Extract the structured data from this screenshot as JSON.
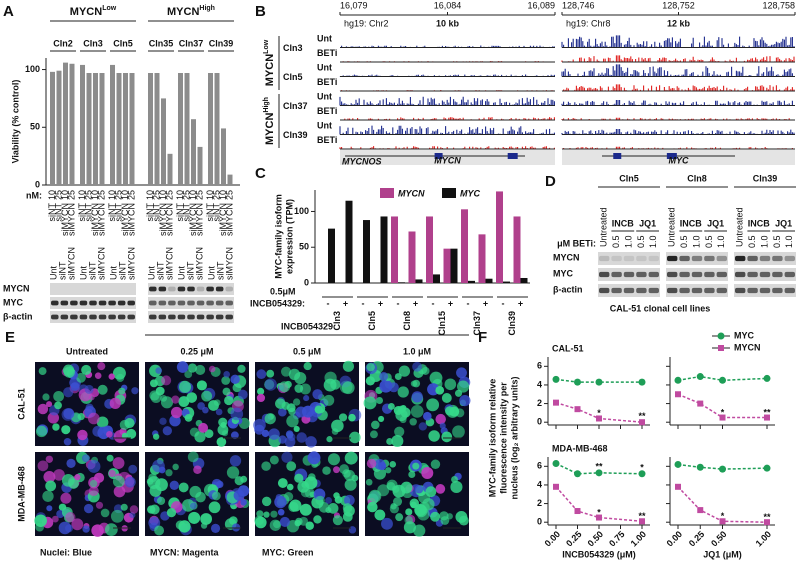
{
  "panel_a": {
    "letter": "A",
    "groups": [
      {
        "name": "MYCN",
        "sup": "Low",
        "clones": [
          {
            "name": "Cln2",
            "values": [
              98,
              99,
              106,
              105
            ]
          },
          {
            "name": "Cln3",
            "values": [
              104,
              97,
              97,
              97
            ]
          },
          {
            "name": "Cln5",
            "values": [
              104,
              97,
              97,
              97
            ]
          }
        ]
      },
      {
        "name": "MYCN",
        "sup": "High",
        "clones": [
          {
            "name": "Cln35",
            "values": [
              97,
              97,
              75,
              27
            ]
          },
          {
            "name": "Cln37",
            "values": [
              97,
              97,
              57,
              33
            ]
          },
          {
            "name": "Cln39",
            "values": [
              97,
              97,
              49,
              9
            ]
          }
        ]
      }
    ],
    "ylabel": "Viability (% control)",
    "ylim": [
      0,
      110
    ],
    "yticks": [
      0,
      50,
      100
    ],
    "color": "#8c8c8c",
    "dose_title": "nM:",
    "doses": [
      "10",
      "25",
      "10",
      "25"
    ],
    "treatments": [
      "siNT",
      "siNT",
      "siMYCN",
      "siMYCN"
    ],
    "blot_lanes": [
      "Unt",
      "siNT",
      "siMYCN"
    ],
    "blot_rows": [
      "MYCN",
      "MYC",
      "β-actin"
    ]
  },
  "panel_b": {
    "letter": "B",
    "left": {
      "assembly": "hg19: Chr2",
      "scale": "10 kb",
      "ticks": [
        "16,079",
        "16,084",
        "16,089"
      ],
      "gene": "MYCN",
      "gene2": "MYCNOS"
    },
    "right": {
      "assembly": "hg19: Chr8",
      "scale": "12 kb",
      "ticks": [
        "128,746",
        "128,752",
        "128,758"
      ],
      "gene": "MYC"
    },
    "groups": [
      {
        "name": "MYCN",
        "sup": "Low",
        "clones": [
          "Cln3",
          "Cln5"
        ]
      },
      {
        "name": "MYCN",
        "sup": "High",
        "clones": [
          "Cln37",
          "Cln39"
        ]
      }
    ],
    "tracks": [
      "Unt",
      "BETi"
    ],
    "unt_color": "#1c2a8c",
    "beti_color": "#e0201e"
  },
  "panel_c": {
    "letter": "C",
    "type": "bar",
    "ylabel": [
      "MYC-family isoform",
      "expression (TPM)"
    ],
    "ylim": [
      0,
      130
    ],
    "yticks": [
      0,
      50,
      100
    ],
    "categories": [
      "Cln3",
      "Cln5",
      "Cln8",
      "Cln15",
      "Cln37",
      "Cln39"
    ],
    "dose": "0.5μM",
    "treatment_title": "INCB054329:",
    "treatment_levels": [
      "-",
      "+"
    ],
    "series": [
      {
        "name": "MYCN",
        "color": "#b0408c",
        "values": [
          [
            0,
            0
          ],
          [
            0,
            0
          ],
          [
            93,
            72
          ],
          [
            93,
            48
          ],
          [
            103,
            68
          ],
          [
            128,
            93
          ]
        ]
      },
      {
        "name": "MYC",
        "color": "#111111",
        "values": [
          [
            76,
            115
          ],
          [
            88,
            93
          ],
          [
            1,
            5
          ],
          [
            12,
            48
          ],
          [
            3,
            6
          ],
          [
            2,
            7
          ]
        ]
      }
    ]
  },
  "panel_d": {
    "letter": "D",
    "clones": [
      "Cln5",
      "Cln8",
      "Cln39"
    ],
    "untreated": "Untreated",
    "drugs": [
      "INCB",
      "JQ1"
    ],
    "dose_title": "μM BETi:",
    "doses": [
      "0.5",
      "1.0"
    ],
    "rows": [
      "MYCN",
      "MYC",
      "β-actin"
    ],
    "caption": "CAL-51 clonal cell lines"
  },
  "panel_e": {
    "letter": "E",
    "drug": "INCB054329",
    "columns": [
      "Untreated",
      "0.25 μM",
      "0.5 μM",
      "1.0 μM"
    ],
    "rows": [
      "CAL-51",
      "MDA-MB-468"
    ],
    "legend": [
      "Nuclei: Blue",
      "MYCN: Magenta",
      "MYC: Green"
    ]
  },
  "panel_f": {
    "letter": "F",
    "type": "line",
    "ylabel": [
      "MYC-family isoform relative",
      "fluorescence intensity per",
      "nucleus (log₂ arbitrary units)"
    ],
    "legend": [
      {
        "name": "MYC",
        "color": "#1e9e57"
      },
      {
        "name": "MYCN",
        "color": "#c04aa0"
      }
    ],
    "ylim": [
      -0.3,
      7
    ],
    "yticks": [
      0,
      2,
      4,
      6
    ],
    "columns": [
      {
        "xlabel": "INCB054329 (μM)",
        "x": [
          0,
          0.25,
          0.5,
          1
        ],
        "xlim": [
          0,
          1
        ],
        "xticks": [
          {
            "value": 0,
            "label": "0.00"
          },
          {
            "value": 0.25,
            "label": "0.25"
          },
          {
            "value": 0.5,
            "label": "0.50"
          },
          {
            "value": 0.75,
            "label": "0.75"
          },
          {
            "value": 1,
            "label": "1.00"
          }
        ]
      },
      {
        "xlabel": "JQ1 (μM)",
        "x": [
          0,
          0.25,
          0.5,
          1
        ],
        "xlim": [
          0,
          1
        ],
        "xticks": [
          {
            "value": 0,
            "label": "0.00"
          },
          {
            "value": 0.25,
            "label": "0.25"
          },
          {
            "value": 0.5,
            "label": "0.50"
          },
          {
            "value": 1,
            "label": "1.00"
          }
        ]
      }
    ],
    "rows": [
      {
        "name": "CAL-51",
        "plots": [
          {
            "series": [
              {
                "values": [
                  4.6,
                  4.3,
                  4.3,
                  4.3
                ]
              },
              {
                "values": [
                  2.1,
                  1.4,
                  0.4,
                  0.0
                ]
              }
            ],
            "annotations": [
              {
                "text": "*",
                "x": 0.5,
                "y": 0.9
              },
              {
                "text": "**",
                "x": 1,
                "y": 0.6
              }
            ]
          },
          {
            "series": [
              {
                "values": [
                  4.5,
                  4.9,
                  4.5,
                  4.7
                ]
              },
              {
                "values": [
                  3.0,
                  2.0,
                  0.5,
                  0.5
                ]
              }
            ],
            "annotations": [
              {
                "text": "*",
                "x": 0.5,
                "y": 1.0
              },
              {
                "text": "**",
                "x": 1,
                "y": 1.0
              }
            ]
          }
        ]
      },
      {
        "name": "MDA-MB-468",
        "plots": [
          {
            "series": [
              {
                "values": [
                  6.3,
                  5.2,
                  5.3,
                  5.2
                ]
              },
              {
                "values": [
                  3.8,
                  1.2,
                  0.5,
                  0.1
                ]
              }
            ],
            "annotations": [
              {
                "text": "**",
                "x": 0.5,
                "y": 5.9
              },
              {
                "text": "*",
                "x": 1,
                "y": 5.8
              },
              {
                "text": "*",
                "x": 0.5,
                "y": 1.0
              },
              {
                "text": "**",
                "x": 1,
                "y": 0.6
              }
            ]
          },
          {
            "series": [
              {
                "values": [
                  6.2,
                  5.9,
                  5.7,
                  5.8
                ]
              },
              {
                "values": [
                  3.8,
                  1.3,
                  0.1,
                  0.0
                ]
              }
            ],
            "annotations": [
              {
                "text": "*",
                "x": 0.5,
                "y": 0.6
              },
              {
                "text": "**",
                "x": 1,
                "y": 0.5
              }
            ]
          }
        ]
      }
    ]
  }
}
